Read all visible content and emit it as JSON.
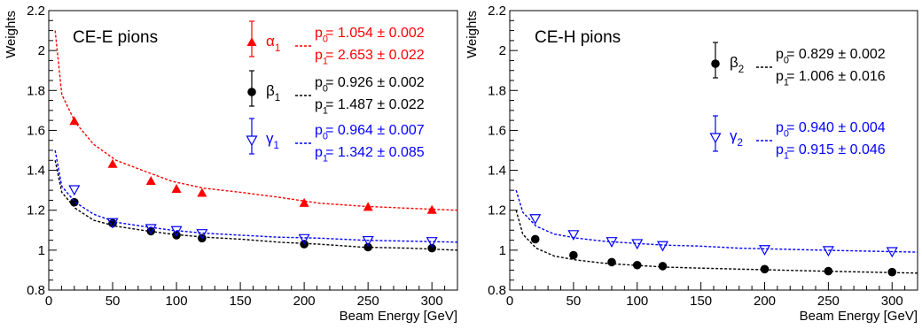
{
  "chart_data": [
    {
      "type": "scatter",
      "title": "CE-E pions",
      "xlabel": "Beam Energy [GeV]",
      "ylabel": "Weights",
      "xlim": [
        0,
        320
      ],
      "ylim": [
        0.8,
        2.2
      ],
      "xticks": [
        0,
        50,
        100,
        150,
        200,
        250,
        300
      ],
      "yticks": [
        0.8,
        1,
        1.2,
        1.4,
        1.6,
        1.8,
        2,
        2.2
      ],
      "grid": false,
      "legend_position": "top-right",
      "series": [
        {
          "name": "α",
          "subscript": "1",
          "marker": "triangle-filled",
          "color": "#ff0000",
          "x": [
            20,
            50,
            80,
            100,
            120,
            200,
            250,
            300
          ],
          "y": [
            1.645,
            1.43,
            1.345,
            1.305,
            1.285,
            1.235,
            1.215,
            1.2
          ],
          "fit_x_range": [
            5,
            320
          ],
          "fit_y": [
            2.1,
            1.78,
            1.64,
            1.53,
            1.45,
            1.4,
            1.345,
            1.31,
            1.29,
            1.265,
            1.235,
            1.22,
            1.21,
            1.2
          ],
          "p0_label": "p",
          "p0_sub": "0",
          "p0_text": "= 1.054 ± 0.002",
          "p1_label": "p",
          "p1_sub": "1",
          "p1_text": "= 2.653 ± 0.022"
        },
        {
          "name": "β",
          "subscript": "1",
          "marker": "circle-filled",
          "color": "#000000",
          "x": [
            20,
            50,
            80,
            100,
            120,
            200,
            250,
            300
          ],
          "y": [
            1.24,
            1.135,
            1.095,
            1.075,
            1.06,
            1.03,
            1.015,
            1.01
          ],
          "fit_x_range": [
            5,
            320
          ],
          "fit_y": [
            1.45,
            1.29,
            1.21,
            1.15,
            1.12,
            1.1,
            1.08,
            1.065,
            1.055,
            1.04,
            1.03,
            1.015,
            1.01,
            1.0
          ],
          "p0_label": "p",
          "p0_sub": "0",
          "p0_text": "= 0.926 ± 0.002",
          "p1_label": "p",
          "p1_sub": "1",
          "p1_text": "= 1.487 ± 0.022"
        },
        {
          "name": "γ",
          "subscript": "1",
          "marker": "triangle-open-down",
          "color": "#0000ff",
          "x": [
            20,
            50,
            80,
            100,
            120,
            200,
            250,
            300
          ],
          "y": [
            1.305,
            1.14,
            1.11,
            1.1,
            1.085,
            1.06,
            1.05,
            1.045
          ],
          "fit_x_range": [
            5,
            320
          ],
          "fit_y": [
            1.5,
            1.32,
            1.24,
            1.18,
            1.14,
            1.12,
            1.1,
            1.085,
            1.075,
            1.065,
            1.06,
            1.05,
            1.045,
            1.04
          ],
          "p0_label": "p",
          "p0_sub": "0",
          "p0_text": "= 0.964 ± 0.007",
          "p1_label": "p",
          "p1_sub": "1",
          "p1_text": "= 1.342 ± 0.085"
        }
      ]
    },
    {
      "type": "scatter",
      "title": "CE-H pions",
      "xlabel": "Beam Energy [GeV]",
      "ylabel": "Weights",
      "xlim": [
        0,
        320
      ],
      "ylim": [
        0.8,
        2.2
      ],
      "xticks": [
        0,
        50,
        100,
        150,
        200,
        250,
        300
      ],
      "yticks": [
        0.8,
        1,
        1.2,
        1.4,
        1.6,
        1.8,
        2,
        2.2
      ],
      "grid": false,
      "legend_position": "top-right",
      "series": [
        {
          "name": "β",
          "subscript": "2",
          "marker": "circle-filled",
          "color": "#000000",
          "x": [
            20,
            50,
            80,
            100,
            120,
            200,
            250,
            300
          ],
          "y": [
            1.055,
            0.975,
            0.94,
            0.925,
            0.92,
            0.905,
            0.895,
            0.89
          ],
          "fit_x_range": [
            5,
            320
          ],
          "fit_y": [
            1.2,
            1.08,
            1.01,
            0.97,
            0.95,
            0.935,
            0.925,
            0.915,
            0.91,
            0.905,
            0.9,
            0.895,
            0.89,
            0.885
          ],
          "p0_label": "p",
          "p0_sub": "0",
          "p0_text": "= 0.829 ± 0.002",
          "p1_label": "p",
          "p1_sub": "1",
          "p1_text": "= 1.006 ± 0.016"
        },
        {
          "name": "γ",
          "subscript": "2",
          "marker": "triangle-open-down",
          "color": "#0000ff",
          "x": [
            20,
            50,
            80,
            100,
            120,
            200,
            250,
            300
          ],
          "y": [
            1.16,
            1.08,
            1.045,
            1.035,
            1.025,
            1.005,
            1.0,
            0.995
          ],
          "fit_x_range": [
            5,
            320
          ],
          "fit_y": [
            1.3,
            1.19,
            1.12,
            1.08,
            1.06,
            1.045,
            1.035,
            1.025,
            1.02,
            1.01,
            1.005,
            1.0,
            0.995,
            0.99
          ],
          "p0_label": "p",
          "p0_sub": "0",
          "p0_text": "= 0.940 ± 0.004",
          "p1_label": "p",
          "p1_sub": "1",
          "p1_text": "= 0.915 ± 0.046"
        }
      ]
    }
  ]
}
